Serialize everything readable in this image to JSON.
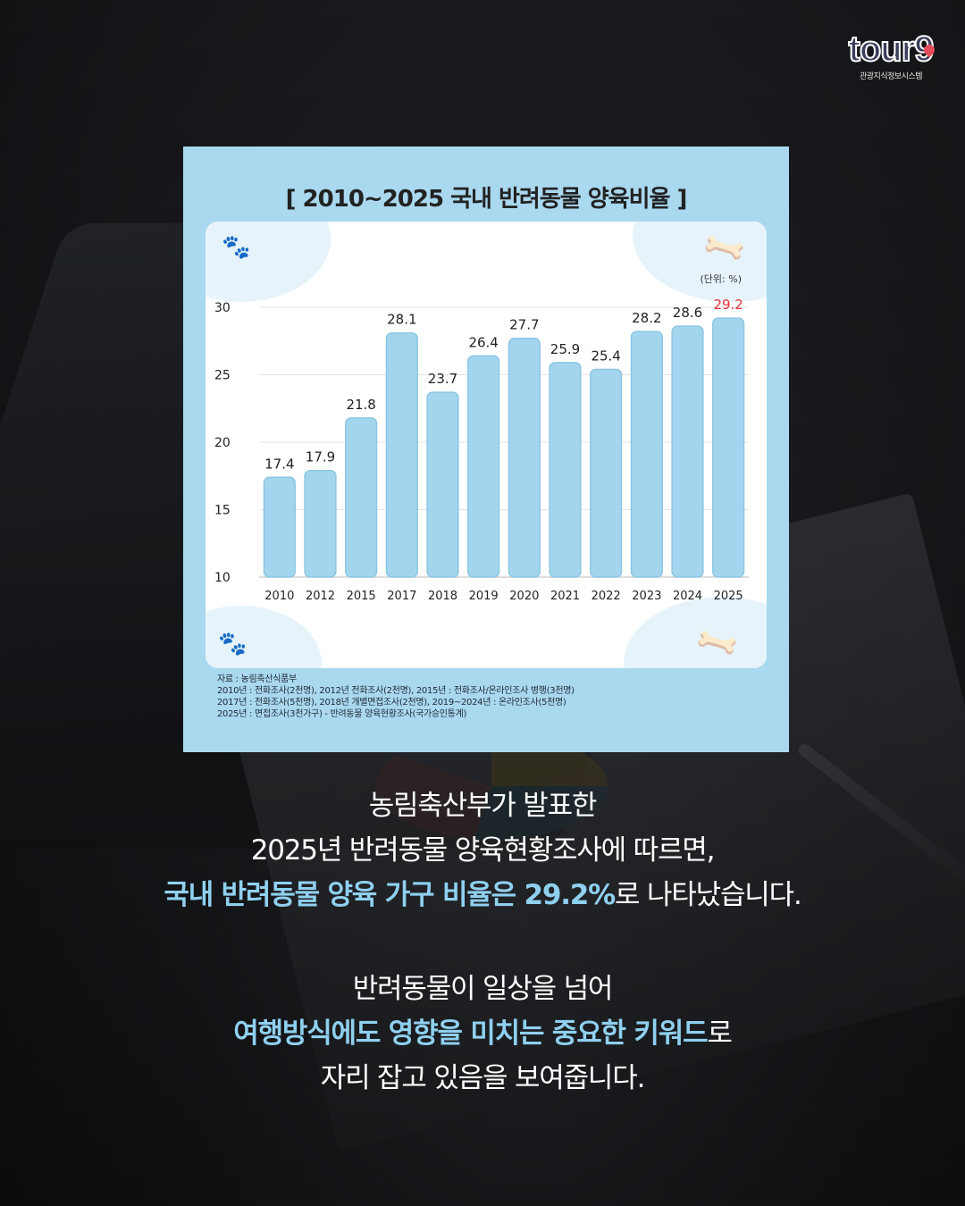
{
  "logo": {
    "word": "tour9",
    "sub": "관광지식정보시스템"
  },
  "card": {
    "title": "[ 2010~2025 국내 반려동물 양육비율 ]",
    "unit": "(단위: %)"
  },
  "chart_data": {
    "type": "bar",
    "title": "[ 2010~2025 국내 반려동물 양육비율 ]",
    "categories": [
      "2010",
      "2012",
      "2015",
      "2017",
      "2018",
      "2019",
      "2020",
      "2021",
      "2022",
      "2023",
      "2024",
      "2025"
    ],
    "values": [
      17.4,
      17.9,
      21.8,
      28.1,
      23.7,
      26.4,
      27.7,
      25.9,
      25.4,
      28.2,
      28.6,
      29.2
    ],
    "ylim": [
      10,
      30
    ],
    "yticks": [
      10,
      15,
      20,
      25,
      30
    ],
    "grid": true,
    "unit": "(단위: %)",
    "colors": {
      "bar": "#a3d6ee",
      "bar_stroke": "#8cc6e2",
      "highlight_label": "#e3303c",
      "label": "#222222"
    },
    "highlight_index": 11
  },
  "source": {
    "lines": [
      "자료 : 농림축산식품부",
      "2010년 : 전화조사(2천명), 2012년 전화조사(2천명), 2015년 : 전화조사/온라인조사 병행(3천명)",
      "2017년 : 전화조사(5천명), 2018년 개별면접조사(2천명), 2019~2024년 : 온라인조사(5천명)",
      "2025년 :  면접조사(3천가구) - 반려동물 양육현황조사(국가승인통계)"
    ]
  },
  "paragraph1": {
    "line1": "농림축산부가 발표한",
    "line2": "2025년 반려동물 양육현황조사에 따르면,",
    "line3_highlight": "국내 반려동물 양육 가구 비율은 29.2%",
    "line3_rest": "로 나타났습니다."
  },
  "paragraph2": {
    "line1": "반려동물이 일상을 넘어",
    "line2_highlight": "여행방식에도 영향을 미치는 중요한 키워드",
    "line2_rest": "로",
    "line3": "자리 잡고 있음을 보여줍니다."
  }
}
